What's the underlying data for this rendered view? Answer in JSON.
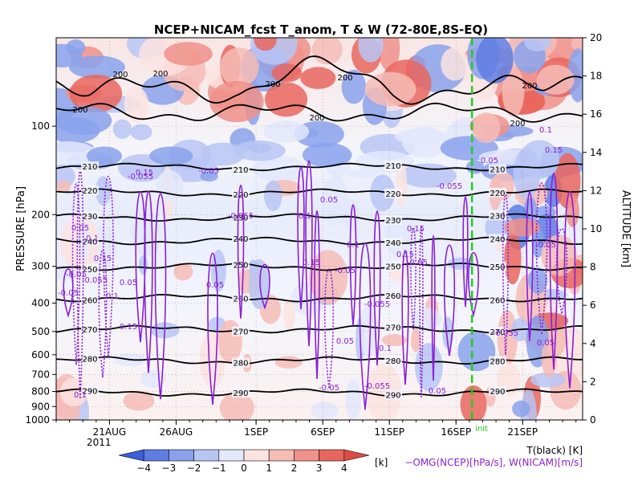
{
  "chart_data": {
    "type": "heatmap",
    "title": "NCEP+NICAM_fcst T_anom, T & W  (72-80E,8S-EQ)",
    "ylabel_left": "PRESSURE [hPa]",
    "ylabel_right": "ALTITUDE [km]",
    "y_scale": "log",
    "pressure_ticks": [
      100,
      200,
      300,
      400,
      500,
      600,
      700,
      800,
      900,
      1000
    ],
    "ylim_pressure": [
      1000,
      50
    ],
    "altitude_ticks": [
      0,
      2,
      4,
      6,
      8,
      10,
      12,
      14,
      16,
      18,
      20
    ],
    "x_ticks": [
      {
        "day": 21,
        "label": "21AUG"
      },
      {
        "day": 26,
        "label": "26AUG"
      },
      {
        "day": 32,
        "label": "1SEP"
      },
      {
        "day": 37,
        "label": "6SEP"
      },
      {
        "day": 42,
        "label": "11SEP"
      },
      {
        "day": 47,
        "label": "16SEP"
      },
      {
        "day": 52,
        "label": "21SEP"
      }
    ],
    "x_days": [
      17.0,
      56.5
    ],
    "year_label": "2011",
    "init_line": {
      "day": 48.2,
      "label": "init",
      "color": "#22cc22"
    },
    "colorbar": {
      "ticks": [
        "−4",
        "−3",
        "−2",
        "−1",
        "0",
        "1",
        "2",
        "3",
        "4"
      ],
      "unit": "[k]",
      "colors": [
        "#3b5fd9",
        "#5e7de3",
        "#8aa2ec",
        "#b8c6f4",
        "#e3e8fb",
        "#fbe3e1",
        "#f6bcb6",
        "#f0918a",
        "#e9665e",
        "#e04a44"
      ]
    },
    "temperature_isotherms": {
      "color": "#000000",
      "levels": [
        {
          "label": "200"
        },
        {
          "label": "210"
        },
        {
          "label": "220"
        },
        {
          "label": "230"
        },
        {
          "label": "240"
        },
        {
          "label": "250"
        },
        {
          "label": "260"
        },
        {
          "label": "270"
        },
        {
          "label": "280"
        },
        {
          "label": "290"
        }
      ]
    },
    "omega_labels": [
      "0.05",
      "0.1",
      "0.15",
      "-0.05",
      "-0.055"
    ],
    "legend": {
      "t_label": "T(black) [K]",
      "w_label": "−OMG(NCEP)[hPa/s], W(NICAM)[m/s]",
      "t_color": "#000000",
      "w_color": "#8a1fd6"
    }
  }
}
